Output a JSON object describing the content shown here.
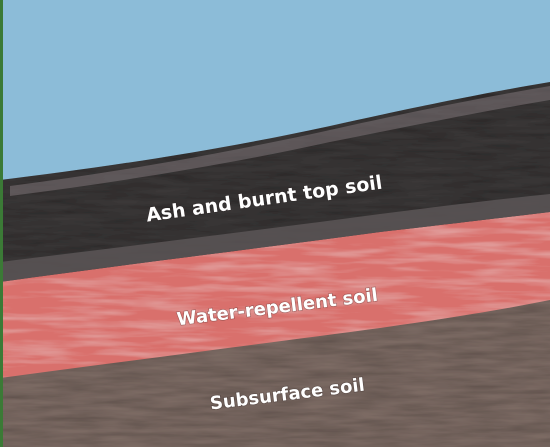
{
  "diagram": {
    "layers": [
      {
        "id": "ash",
        "label": "Ash and burnt top soil",
        "color": "#3b3838"
      },
      {
        "id": "water_repellent",
        "label": "Water-repellent soil",
        "color": "#d9706c"
      },
      {
        "id": "subsurface",
        "label": "Subsurface soil",
        "color": "#7c6a63"
      }
    ],
    "sky_color": "#8cbcd8",
    "edge_color": "#3b7a36"
  }
}
